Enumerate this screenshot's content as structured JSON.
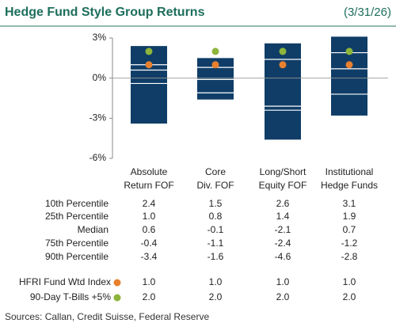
{
  "chart_data": {
    "type": "percentile",
    "title": "Hedge Fund Style Group Returns",
    "date": "(3/31/26)",
    "categories": [
      [
        "Absolute",
        "Return FOF"
      ],
      [
        "Core",
        "Div. FOF"
      ],
      [
        "Long/Short",
        "Equity FOF"
      ],
      [
        "Institutional",
        "Hedge Funds"
      ]
    ],
    "ylim": [
      -6,
      3
    ],
    "yticks": [
      {
        "value": 3,
        "label": "3%"
      },
      {
        "value": 0,
        "label": "0%"
      },
      {
        "value": -3,
        "label": "-3%"
      },
      {
        "value": -6,
        "label": "-6%"
      }
    ],
    "bar_color": "#0f3d67",
    "series": [
      {
        "name": "10th Percentile",
        "values": [
          2.4,
          1.5,
          2.6,
          3.1
        ],
        "value_labels": [
          "2.4",
          "1.5",
          "2.6",
          "3.1"
        ]
      },
      {
        "name": "25th Percentile",
        "values": [
          1.0,
          0.8,
          1.4,
          1.9
        ],
        "value_labels": [
          "1.0",
          "0.8",
          "1.4",
          "1.9"
        ]
      },
      {
        "name": "Median",
        "values": [
          0.6,
          -0.1,
          -2.1,
          0.7
        ],
        "value_labels": [
          "0.6",
          "-0.1",
          "-2.1",
          "0.7"
        ]
      },
      {
        "name": "75th Percentile",
        "values": [
          -0.4,
          -1.1,
          -2.4,
          -1.2
        ],
        "value_labels": [
          "-0.4",
          "-1.1",
          "-2.4",
          "-1.2"
        ]
      },
      {
        "name": "90th Percentile",
        "values": [
          -3.4,
          -1.6,
          -4.6,
          -2.8
        ],
        "value_labels": [
          "-3.4",
          "-1.6",
          "-4.6",
          "-2.8"
        ]
      },
      {
        "name": "HFRI Fund Wtd Index",
        "color": "#e8802e",
        "values": [
          1.0,
          1.0,
          1.0,
          1.0
        ],
        "value_labels": [
          "1.0",
          "1.0",
          "1.0",
          "1.0"
        ]
      },
      {
        "name": "90-Day T-Bills +5%",
        "color": "#8db53c",
        "values": [
          2.0,
          2.0,
          2.0,
          2.0
        ],
        "value_labels": [
          "2.0",
          "2.0",
          "2.0",
          "2.0"
        ]
      }
    ],
    "source": "Sources: Callan, Credit Suisse, Federal Reserve"
  }
}
